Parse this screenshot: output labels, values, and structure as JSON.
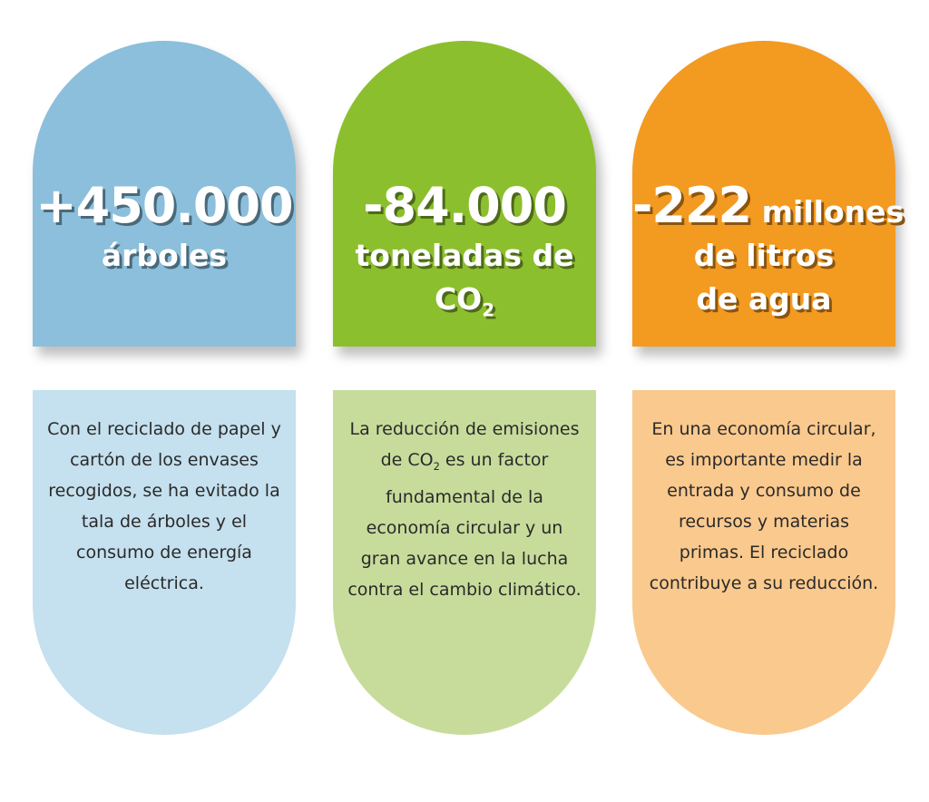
{
  "colors": {
    "blue": "#8bbfdc",
    "green": "#8cbf2d",
    "orange": "#f39a21",
    "light_blue": "#c5e0ee",
    "light_green": "#c7dc9b",
    "light_orange": "#fac98e"
  },
  "cards": [
    {
      "value": "+450.000",
      "unit": "árboles",
      "description": "Con el reciclado de papel y cartón de los envases recogidos, se ha evitado la tala de árboles y el consumo de energía eléctrica."
    },
    {
      "value": "-84.000",
      "unit": "toneladas de",
      "unit2": "CO",
      "unit2_sub": "2",
      "description_a": "La reducción de emisiones de CO",
      "description_sub": "2",
      "description_b": " es un factor fundamental de la economía circular y un gran avance en la lucha contra el cambio climático."
    },
    {
      "value": "-222",
      "unit_inline": " millones",
      "unit": "de litros de agua",
      "description": "En una economía circular, es importante medir la entrada y consumo de recursos y  materias primas. El reciclado contribuye a su reducción."
    }
  ]
}
